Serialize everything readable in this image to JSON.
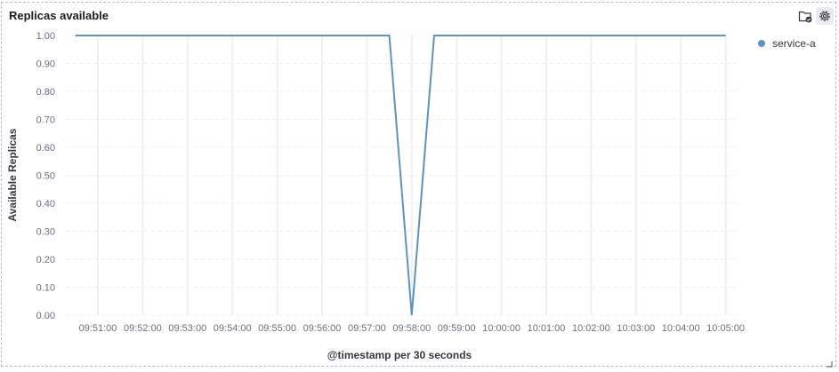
{
  "panel": {
    "title": "Replicas available",
    "icons": [
      "folder-check-icon",
      "gear-icon"
    ]
  },
  "colors": {
    "series": "#6092c0",
    "grid": "#eef0f3",
    "axis_text": "#69707d"
  },
  "chart_data": {
    "type": "line",
    "xlabel": "@timestamp per 30 seconds",
    "ylabel": "Available Replicas",
    "ylim": [
      0,
      1
    ],
    "y_ticks": [
      "0.00",
      "0.10",
      "0.20",
      "0.30",
      "0.40",
      "0.50",
      "0.60",
      "0.70",
      "0.80",
      "0.90",
      "1.00"
    ],
    "x_ticks": [
      "09:51:00",
      "09:52:00",
      "09:53:00",
      "09:54:00",
      "09:55:00",
      "09:56:00",
      "09:57:00",
      "09:58:00",
      "09:59:00",
      "10:00:00",
      "10:01:00",
      "10:02:00",
      "10:03:00",
      "10:04:00",
      "10:05:00"
    ],
    "x_range": [
      "09:50:30",
      "10:05:00"
    ],
    "grid": true,
    "legend_position": "right",
    "series": [
      {
        "name": "service-a",
        "points": [
          [
            "09:50:30",
            1
          ],
          [
            "09:51:00",
            1
          ],
          [
            "09:51:30",
            1
          ],
          [
            "09:52:00",
            1
          ],
          [
            "09:52:30",
            1
          ],
          [
            "09:53:00",
            1
          ],
          [
            "09:53:30",
            1
          ],
          [
            "09:54:00",
            1
          ],
          [
            "09:54:30",
            1
          ],
          [
            "09:55:00",
            1
          ],
          [
            "09:55:30",
            1
          ],
          [
            "09:56:00",
            1
          ],
          [
            "09:56:30",
            1
          ],
          [
            "09:57:00",
            1
          ],
          [
            "09:57:30",
            1
          ],
          [
            "09:58:00",
            0
          ],
          [
            "09:58:30",
            1
          ],
          [
            "09:59:00",
            1
          ],
          [
            "09:59:30",
            1
          ],
          [
            "10:00:00",
            1
          ],
          [
            "10:00:30",
            1
          ],
          [
            "10:01:00",
            1
          ],
          [
            "10:01:30",
            1
          ],
          [
            "10:02:00",
            1
          ],
          [
            "10:02:30",
            1
          ],
          [
            "10:03:00",
            1
          ],
          [
            "10:03:30",
            1
          ],
          [
            "10:04:00",
            1
          ],
          [
            "10:04:30",
            1
          ],
          [
            "10:05:00",
            1
          ]
        ]
      }
    ]
  }
}
